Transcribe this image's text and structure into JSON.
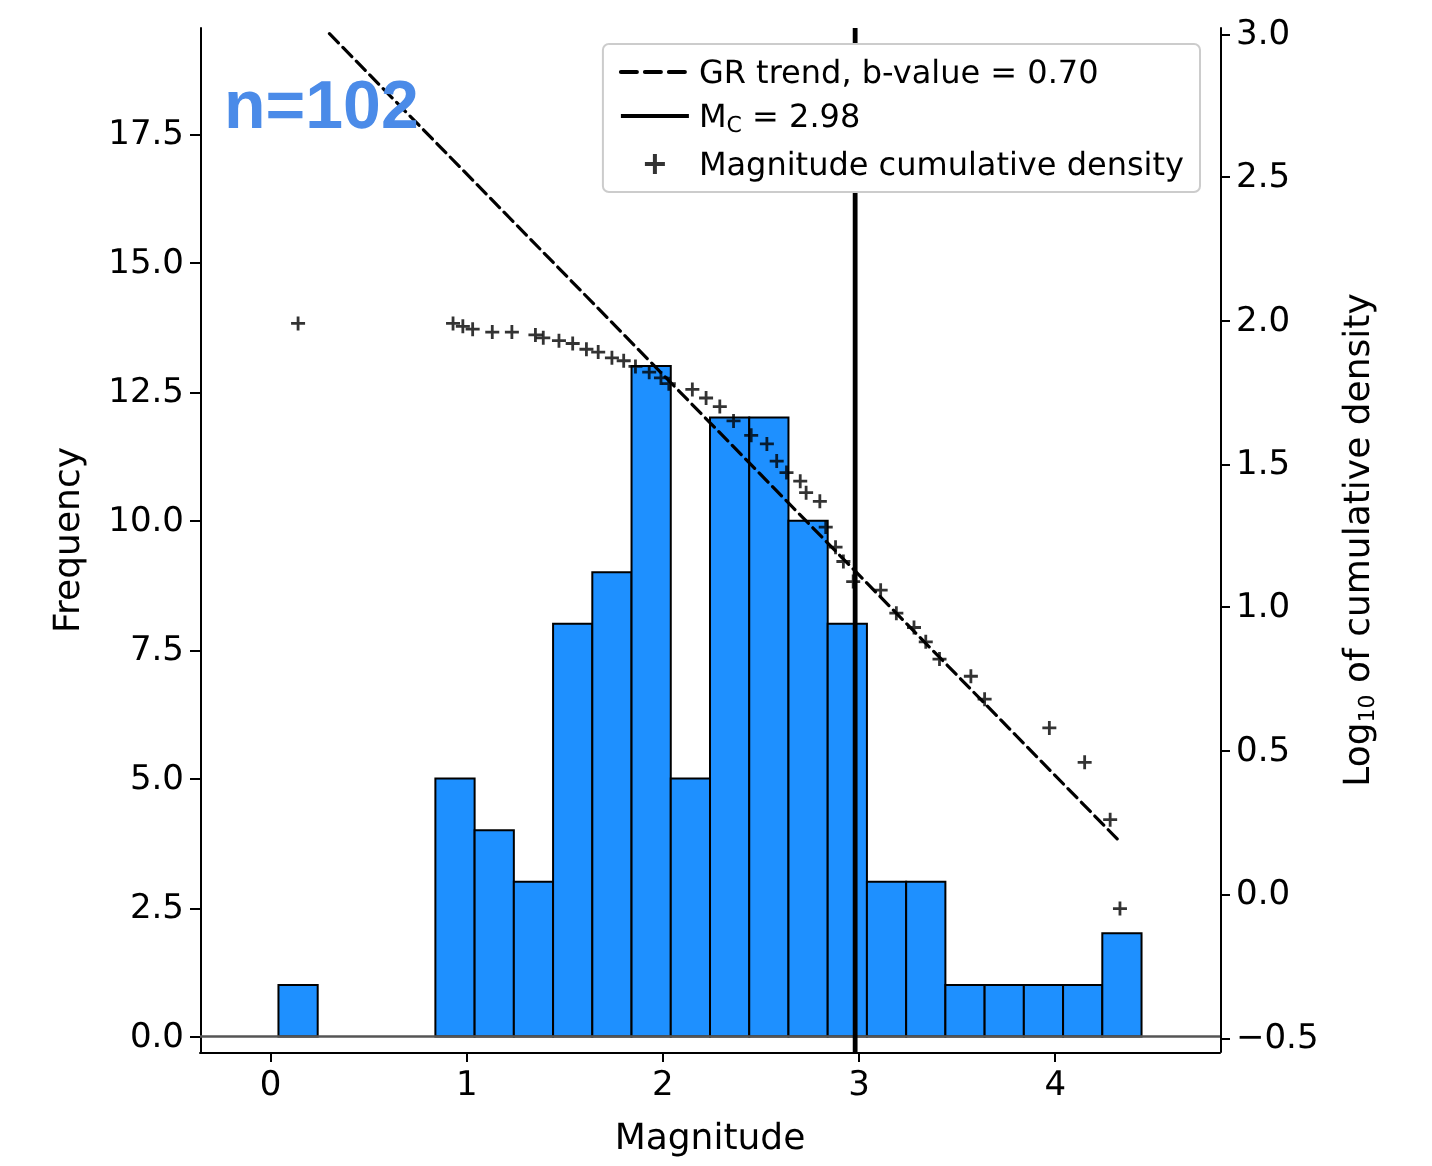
{
  "chart_data": {
    "type": "histogram",
    "annotations": [
      "n=102"
    ],
    "xlabel": "Magnitude",
    "ylabel": "Frequency",
    "y2label": "Log$_{10}$ of cumulative density",
    "bins": [
      0.04,
      0.24,
      0.44,
      0.64,
      0.84,
      1.04,
      1.24,
      1.44,
      1.64,
      1.84,
      2.04,
      2.24,
      2.44,
      2.64,
      2.84,
      3.04,
      3.24,
      3.44,
      3.64,
      3.84,
      4.04,
      4.24,
      4.44
    ],
    "values": [
      1,
      0,
      0,
      0,
      5,
      4,
      3,
      8,
      9,
      13,
      5,
      12,
      12,
      10,
      8,
      3,
      3,
      1,
      1,
      1,
      1,
      2
    ],
    "color": "#1e90ff",
    "series": [
      {
        "type": "line",
        "name": "GR trend, b-value = 0.70",
        "axis": "y2",
        "color": "#000000",
        "line_style": "dashed",
        "marker": "none",
        "x": [
          0.3,
          4.32
        ],
        "values": [
          3.0,
          0.19
        ]
      },
      {
        "type": "scatter",
        "name": "Magnitude cumulative density",
        "axis": "y2",
        "color": "#000000",
        "marker": "cross",
        "x": [
          0.14,
          0.93,
          0.98,
          1.03,
          1.13,
          1.23,
          1.35,
          1.39,
          1.47,
          1.54,
          1.61,
          1.67,
          1.74,
          1.8,
          1.86,
          1.93,
          1.99,
          2.03,
          2.15,
          2.22,
          2.29,
          2.36,
          2.45,
          2.53,
          2.58,
          2.63,
          2.7,
          2.73,
          2.8,
          2.83,
          2.88,
          2.92,
          2.97,
          3.11,
          3.19,
          3.28,
          3.34,
          3.41,
          3.57,
          3.64,
          3.97,
          4.15,
          4.28,
          4.33
        ],
        "values": [
          1.99,
          1.99,
          1.98,
          1.97,
          1.96,
          1.96,
          1.95,
          1.94,
          1.93,
          1.92,
          1.9,
          1.89,
          1.87,
          1.86,
          1.84,
          1.82,
          1.8,
          1.78,
          1.76,
          1.73,
          1.7,
          1.65,
          1.6,
          1.57,
          1.51,
          1.47,
          1.44,
          1.4,
          1.37,
          1.28,
          1.21,
          1.16,
          1.09,
          1.06,
          0.98,
          0.93,
          0.88,
          0.82,
          0.76,
          0.68,
          0.58,
          0.46,
          0.26,
          -0.05
        ]
      }
    ],
    "ref_lines": [
      {
        "axis": "x",
        "value": 2.98,
        "label": "M$_{C}$ = 2.98",
        "color": "#000000"
      },
      {
        "axis": "y",
        "value": 0,
        "color": "#555555"
      }
    ],
    "xlim": [
      -0.36,
      4.84
    ],
    "xticks": [
      0,
      1,
      2,
      3,
      4
    ],
    "ylim": [
      -0.3,
      19.55
    ],
    "yticks": [
      {
        "value": 0,
        "label": "0.0"
      },
      2.5,
      {
        "value": 5,
        "label": "5.0"
      },
      7.5,
      {
        "value": 10,
        "label": "10.0"
      },
      12.5,
      {
        "value": 15,
        "label": "15.0"
      },
      17.5
    ],
    "y2lim": [
      -0.55,
      3.02
    ],
    "y2ticks": [
      {
        "value": -0.5,
        "label": "−0.5"
      },
      {
        "value": 0,
        "label": "0.0"
      },
      0.5,
      {
        "value": 1,
        "label": "1.0"
      },
      1.5,
      {
        "value": 2,
        "label": "2.0"
      },
      2.5,
      {
        "value": 3,
        "label": "3.0"
      }
    ],
    "legend": "top right",
    "grid": false
  }
}
